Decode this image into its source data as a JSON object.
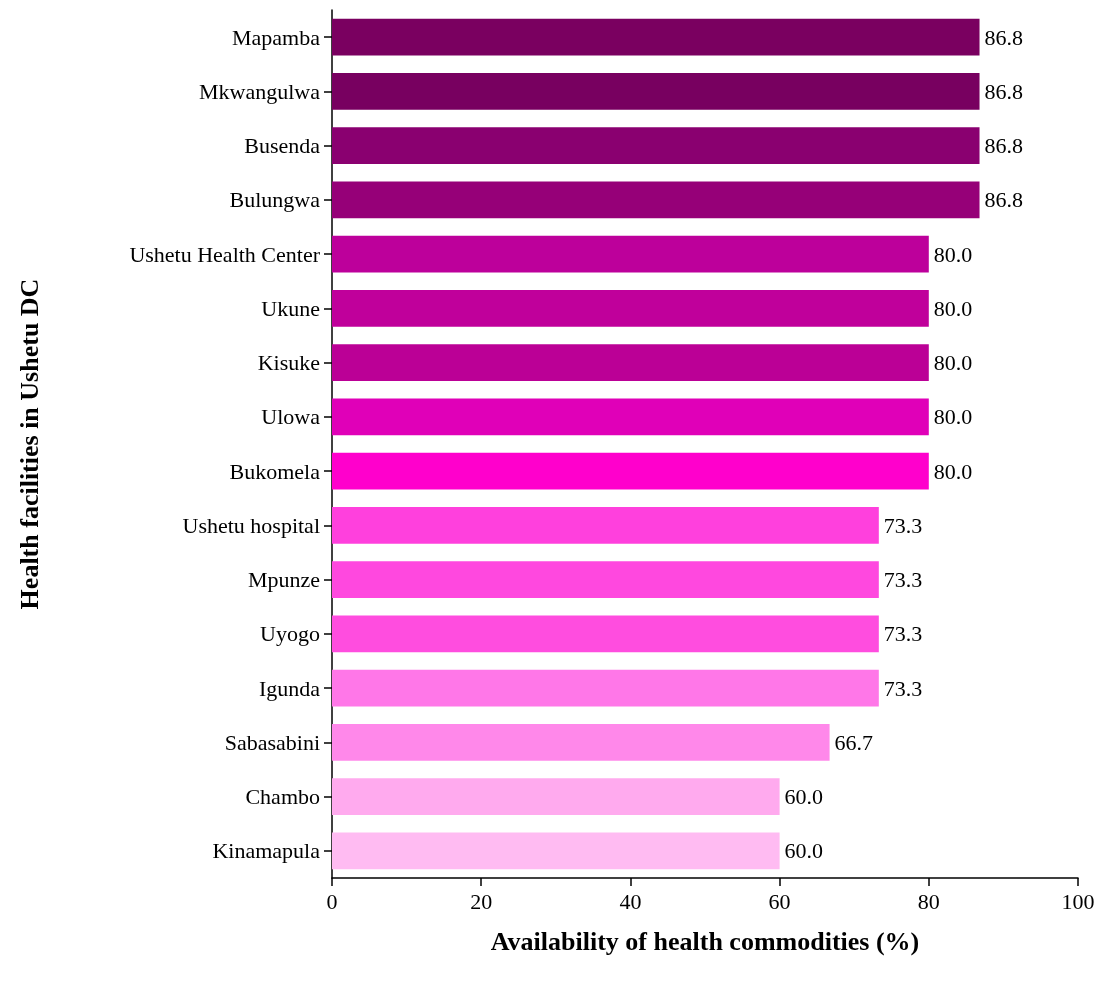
{
  "chart_data": {
    "type": "bar",
    "orientation": "horizontal",
    "xlabel": "Availability of health commodities (%)",
    "ylabel": "Health facilities in Ushetu DC",
    "categories": [
      "Mapamba",
      "Mkwangulwa",
      "Busenda",
      "Bulungwa",
      "Ushetu Health Center",
      "Ukune",
      "Kisuke",
      "Ulowa",
      "Bukomela",
      "Ushetu hospital",
      "Mpunze",
      "Uyogo",
      "Igunda",
      "Sabasabini",
      "Chambo",
      "Kinamapula"
    ],
    "values": [
      86.8,
      86.8,
      86.8,
      86.8,
      80,
      80,
      80,
      80,
      80,
      73.3,
      73.3,
      73.3,
      73.3,
      66.7,
      60,
      60
    ],
    "value_labels": [
      "86.8",
      "86.8",
      "86.8",
      "86.8",
      "80.0",
      "80.0",
      "80.0",
      "80.0",
      "80.0",
      "73.3",
      "73.3",
      "73.3",
      "73.3",
      "66.7",
      "60.0",
      "60.0"
    ],
    "colors": [
      "#7a0060",
      "#780060",
      "#8a0070",
      "#960078",
      "#bd009b",
      "#c0009b",
      "#bb0096",
      "#e000b8",
      "#ff00cc",
      "#ff40dd",
      "#ff48df",
      "#ff4ddf",
      "#ff77e8",
      "#ff88ea",
      "#ffaaee",
      "#ffbbf2"
    ],
    "xlim": [
      0,
      100
    ],
    "xticks": [
      0,
      20,
      40,
      60,
      80,
      100
    ],
    "grid": false
  }
}
